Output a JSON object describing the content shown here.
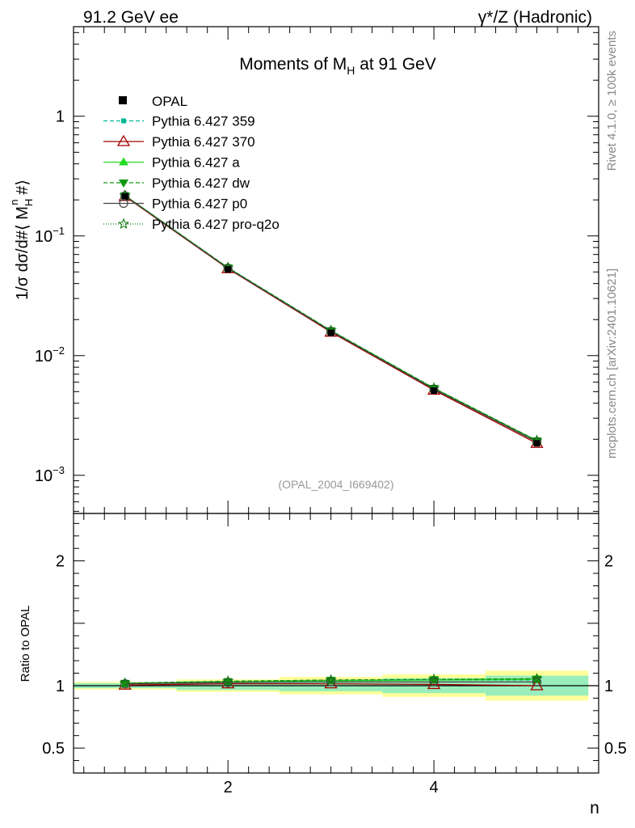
{
  "header": {
    "left": "91.2 GeV ee",
    "right": "γ*/Z (Hadronic)"
  },
  "side_text": {
    "top": "Rivet 4.1.0, ≥ 100k events",
    "bottom": "mcplots.cern.ch [arXiv:2401.10621]"
  },
  "chart_data": {
    "type": "line",
    "title_main": "Moments of M",
    "title_sub": "H",
    "title_rest": " at 91 GeV",
    "ylabel": "1/σ  dσ/d#⟨ M",
    "ylabel_sup": "n",
    "ylabel_sub": "H",
    "ylabel_end": " #⟩",
    "xlabel": "n",
    "ratio_ylabel": "Ratio to OPAL",
    "watermark": "(OPAL_2004_I669402)",
    "xlim": [
      0.5,
      5.6
    ],
    "ylim_log": [
      0.00048,
      5.6
    ],
    "ratio_ylim": [
      0.3,
      2.38
    ],
    "x_ticks": [
      2,
      4
    ],
    "y_tick_labels": [
      {
        "value": 1,
        "base": "1",
        "exp": ""
      },
      {
        "value": 0.1,
        "base": "10",
        "exp": "−1"
      },
      {
        "value": 0.01,
        "base": "10",
        "exp": "−2"
      },
      {
        "value": 0.001,
        "base": "10",
        "exp": "−3"
      }
    ],
    "ratio_ticks": [
      {
        "value": 2,
        "label": "2"
      },
      {
        "value": 1,
        "label": "1"
      },
      {
        "value": 0.5,
        "label": "0.5"
      }
    ],
    "x": [
      1,
      2,
      3,
      4,
      5
    ],
    "data": {
      "name": "OPAL",
      "values": [
        0.213,
        0.0525,
        0.0155,
        0.0051,
        0.00185
      ],
      "band_inner": [
        0.02,
        0.035,
        0.045,
        0.06,
        0.08
      ],
      "band_outer": [
        0.03,
        0.05,
        0.07,
        0.09,
        0.12
      ]
    },
    "series": [
      {
        "name": "Pythia 6.427 359",
        "color": "#00b894",
        "dash": "5,3",
        "marker": "square-small",
        "ratio": [
          1.02,
          1.035,
          1.045,
          1.045,
          1.045
        ]
      },
      {
        "name": "Pythia 6.427 370",
        "color": "#a00000",
        "dash": "",
        "marker": "triangle-open",
        "ratio": [
          1.005,
          1.015,
          1.015,
          1.01,
          1.0
        ]
      },
      {
        "name": "Pythia 6.427 a",
        "color": "#22dd22",
        "dash": "",
        "marker": "triangle-filled",
        "ratio": [
          1.02,
          1.03,
          1.04,
          1.045,
          1.05
        ]
      },
      {
        "name": "Pythia 6.427 dw",
        "color": "#119911",
        "dash": "5,3",
        "marker": "triangle-down",
        "ratio": [
          1.02,
          1.035,
          1.045,
          1.05,
          1.055
        ]
      },
      {
        "name": "Pythia 6.427 p0",
        "color": "#444444",
        "dash": "",
        "marker": "circle-open",
        "ratio": [
          1.015,
          1.025,
          1.03,
          1.03,
          1.03
        ]
      },
      {
        "name": "Pythia 6.427 pro-q2o",
        "color": "#117711",
        "dash": "1,2",
        "marker": "star",
        "ratio": [
          1.02,
          1.035,
          1.045,
          1.05,
          1.055
        ]
      }
    ]
  }
}
